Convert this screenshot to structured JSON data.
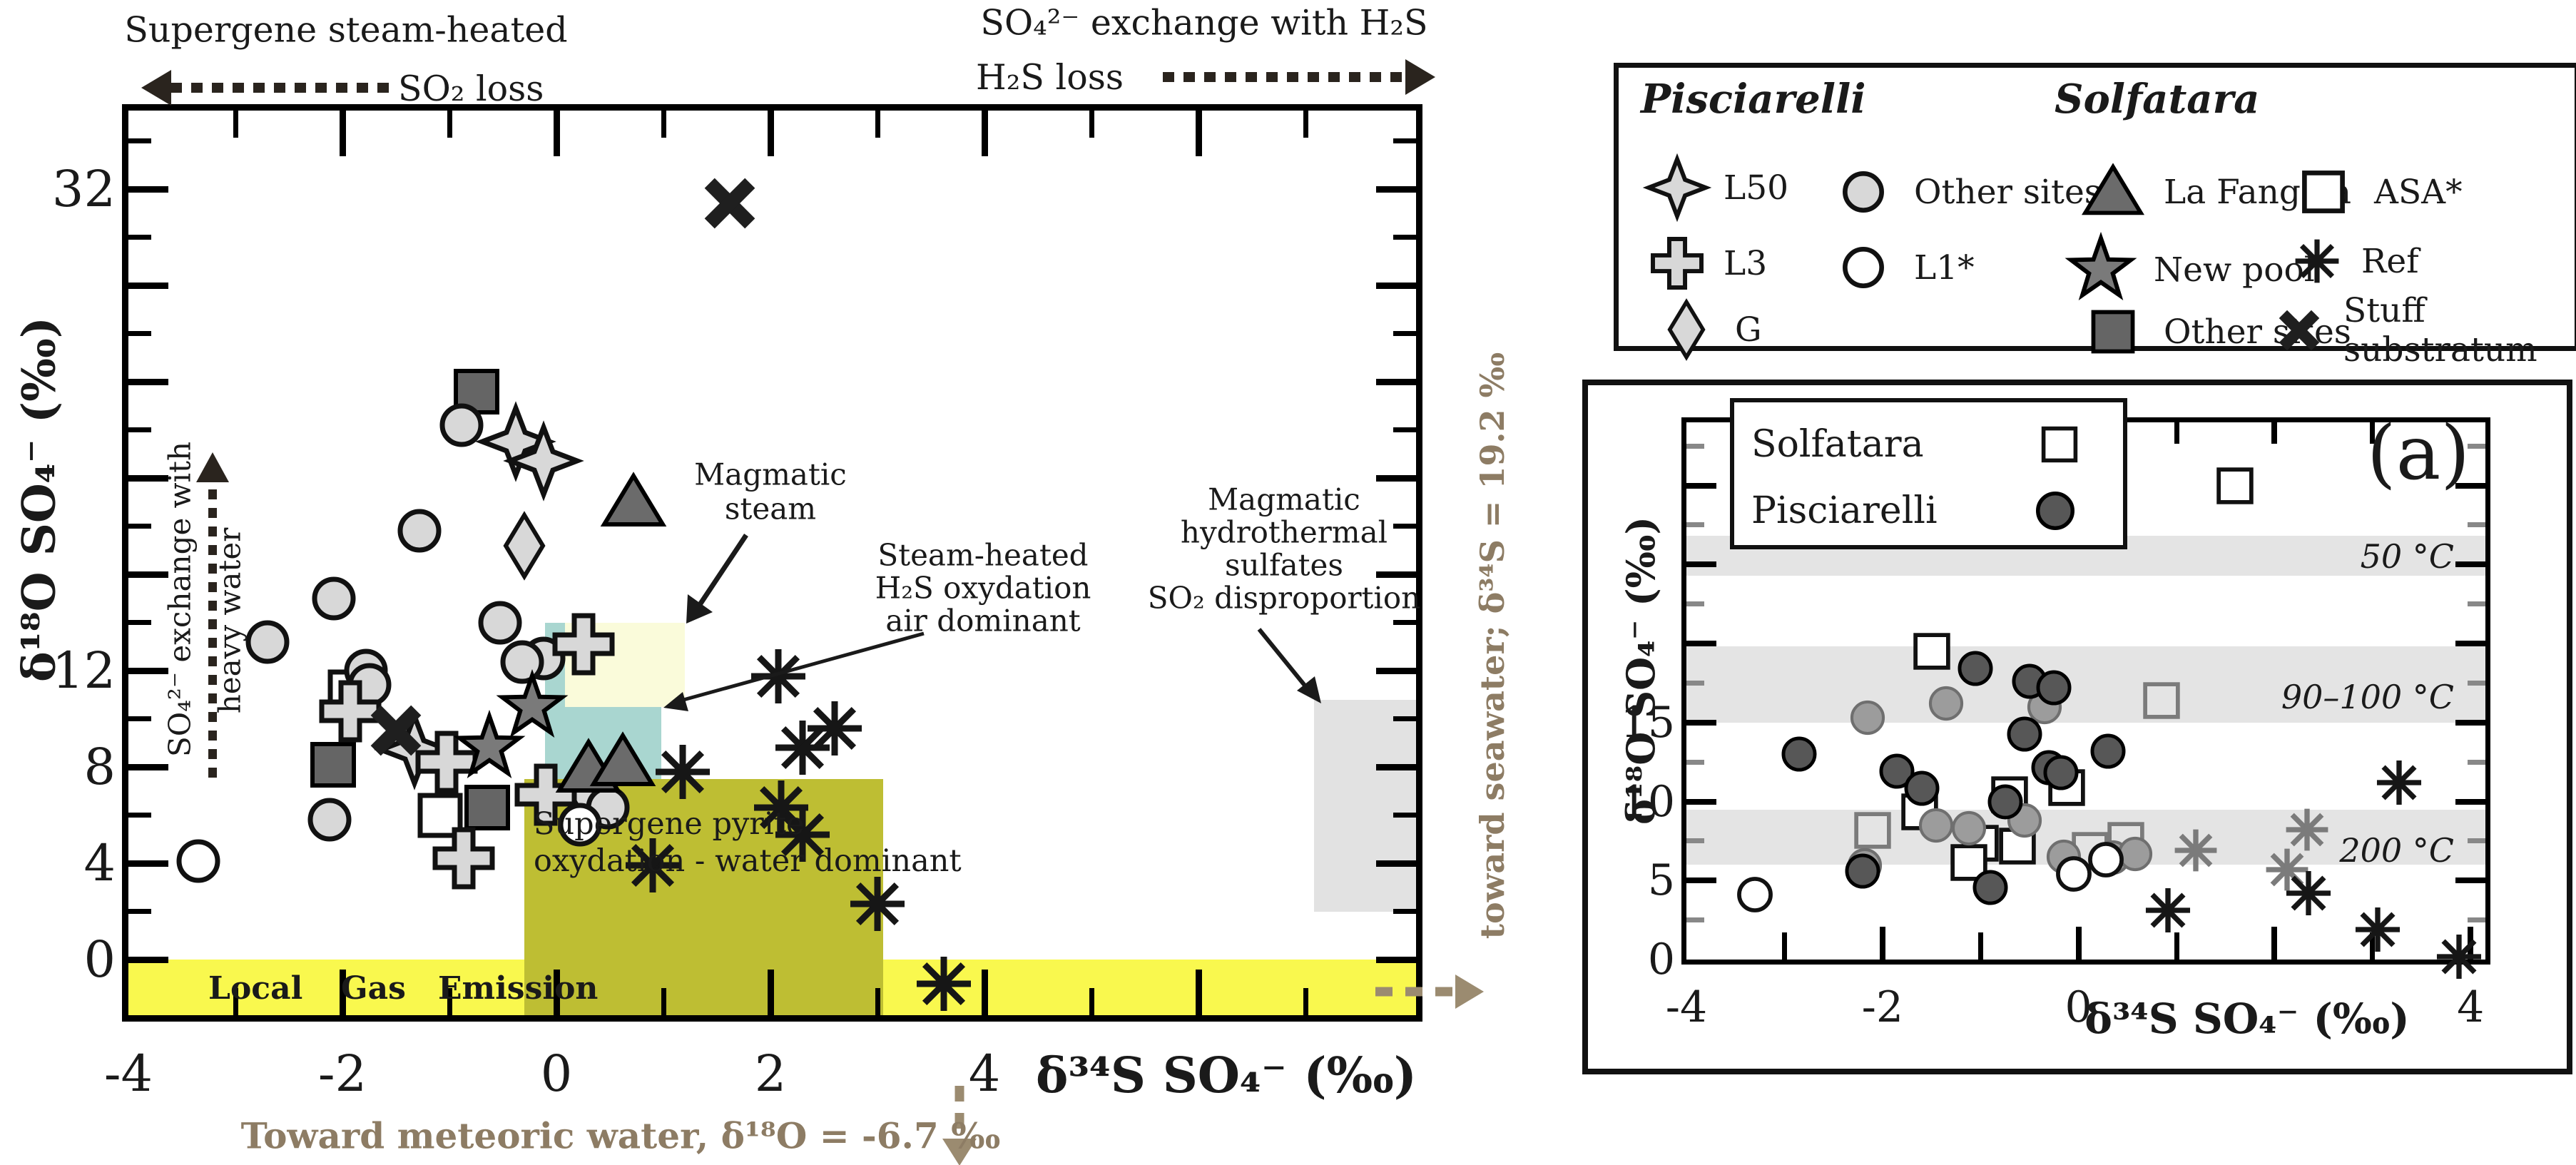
{
  "colors": {
    "light_gray": "#d8d8d8",
    "dark_gray": "#656565",
    "medium_gray": "#9c9c9c",
    "star_gray": "#7a7a7a",
    "black": "#1a1a1a",
    "yellow_band": "#f9f84e",
    "olive": "#bebe33",
    "pale_yellow": "#fafbda",
    "teal": "#a9d6d0",
    "gray_box": "#e2e2e2",
    "band_gray": "#e4e4e4",
    "annotation_brown": "#8d7c64"
  },
  "main_legend": {
    "pisciarelli_title": "Pisciarelli",
    "solfatara_title": "Solfatara",
    "l50": "L50",
    "other_sites_p": "Other sites",
    "l3": "L3",
    "l1": "L1*",
    "g": "G",
    "la_fangaia": "La Fangaia",
    "asa": "ASA*",
    "new_pool": "New pool",
    "ref": "Ref",
    "other_sites_s": "Other sites",
    "stuff_substratum": "Stuff substratum"
  },
  "chart_data": [
    {
      "type": "scatter",
      "title": "main isotope plot",
      "xlabel": "δ³⁴S SO₄⁻ (‰)",
      "ylabel": "δ¹⁸O SO₄⁻ (‰)",
      "xlim": [
        -4,
        8.03
      ],
      "ylim": [
        -2.31,
        35.26
      ],
      "x_tick_labels": [
        -4,
        -2,
        0,
        2,
        4
      ],
      "y_tick_labels": [
        0,
        4,
        8,
        12,
        32
      ],
      "annotations": {
        "top_left_1": "Supergene steam-heated",
        "top_left_2": "SO₂ loss",
        "top_right_1": "SO₄²⁻ exchange with H₂S",
        "top_right_2": "H₂S loss",
        "heavy_water": [
          "SO₄²⁻ exchange with",
          "heavy water"
        ],
        "magmatic_steam": [
          "Magmatic",
          "steam"
        ],
        "steam_heated": [
          "Steam-heated",
          "H₂S oxydation",
          "air dominant"
        ],
        "magmatic_hydrothermal": [
          "Magmatic",
          "hydrothermal",
          "sulfates",
          "SO₂ disproportion"
        ],
        "supergene_pyrite": [
          "Supergene pyrite",
          "oxydation - water dominant"
        ],
        "local_gas": [
          "Local",
          "Gas",
          "Emission"
        ],
        "toward_meteoric": "Toward meteoric water, δ¹⁸O = -6.7 ‰",
        "toward_seawater": "toward seawater; δ³⁴S = 19.2 ‰"
      },
      "regions": [
        {
          "name": "local-gas-emission-band",
          "color": "yellow_band",
          "x0": -4,
          "x1": 8.03,
          "y0": -2.31,
          "y1": 0
        },
        {
          "name": "supergene-pyrite-box",
          "color": "olive",
          "x0": -0.3,
          "x1": 3.05,
          "y0": -2.31,
          "y1": 7.5
        },
        {
          "name": "steam-heated-box",
          "color": "teal",
          "x0": -0.11,
          "x1": 0.98,
          "y0": 7.5,
          "y1": 14.0
        },
        {
          "name": "magmatic-steam-box",
          "color": "pale_yellow",
          "x0": 0.08,
          "x1": 1.2,
          "y0": 10.5,
          "y1": 14.0
        },
        {
          "name": "magmatic-hydrothermal-box",
          "color": "gray_box",
          "x0": 7.08,
          "x1": 8.03,
          "y0": 2.0,
          "y1": 10.8
        }
      ],
      "series": [
        {
          "name": "solfatara-asa",
          "marker": "square-open",
          "points": [
            [
              -1.93,
              11.1
            ],
            [
              -1.09,
              6.0
            ]
          ]
        },
        {
          "name": "solfatara-other-sites",
          "marker": "square-dark",
          "points": [
            [
              -0.75,
              23.6
            ],
            [
              -2.09,
              8.1
            ],
            [
              -0.65,
              6.3
            ]
          ]
        },
        {
          "name": "pisciarelli-other-sites",
          "marker": "circle-light",
          "points": [
            [
              -0.89,
              22.2
            ],
            [
              -1.28,
              17.8
            ],
            [
              -2.08,
              15.0
            ],
            [
              -2.7,
              13.2
            ],
            [
              -1.78,
              12.0
            ],
            [
              -1.75,
              11.4
            ],
            [
              -0.53,
              14.0
            ],
            [
              -0.12,
              12.5
            ],
            [
              -0.32,
              12.35
            ],
            [
              -2.12,
              5.8
            ],
            [
              0.33,
              6.9
            ],
            [
              0.48,
              6.3
            ]
          ]
        },
        {
          "name": "pisciarelli-l50",
          "marker": "l50-cross",
          "points": [
            [
              -0.38,
              21.5
            ],
            [
              -0.12,
              20.7
            ],
            [
              -1.33,
              8.7
            ]
          ]
        },
        {
          "name": "pisciarelli-g",
          "marker": "diamond",
          "points": [
            [
              -0.3,
              17.2
            ]
          ]
        },
        {
          "name": "pisciarelli-l3",
          "marker": "plus-cross",
          "points": [
            [
              0.25,
              13.1
            ],
            [
              -1.93,
              10.3
            ],
            [
              -1.03,
              8.2
            ],
            [
              -0.1,
              6.85
            ],
            [
              -0.87,
              4.2
            ]
          ]
        },
        {
          "name": "solfatara-new-pool",
          "marker": "star-gray",
          "points": [
            [
              -0.23,
              10.5
            ],
            [
              -0.63,
              8.8
            ]
          ]
        },
        {
          "name": "solfatara-la-fangaia",
          "marker": "triangle-dark",
          "points": [
            [
              0.72,
              19.0
            ],
            [
              0.3,
              7.95
            ],
            [
              0.62,
              8.2
            ]
          ]
        },
        {
          "name": "pisciarelli-l1",
          "marker": "circle-open",
          "points": [
            [
              -3.35,
              4.1
            ],
            [
              0.22,
              5.6
            ]
          ]
        },
        {
          "name": "stuff-substratum",
          "marker": "x-black",
          "points": [
            [
              1.62,
              31.4
            ],
            [
              -1.5,
              9.5
            ]
          ]
        },
        {
          "name": "solfatara-ref",
          "marker": "asterisk",
          "points": [
            [
              2.07,
              11.75
            ],
            [
              2.6,
              9.6
            ],
            [
              2.3,
              8.8
            ],
            [
              1.18,
              7.8
            ],
            [
              2.1,
              6.3
            ],
            [
              2.3,
              5.2
            ],
            [
              0.9,
              3.9
            ],
            [
              3.0,
              2.3
            ],
            [
              3.62,
              -1.0
            ]
          ]
        }
      ]
    },
    {
      "type": "scatter",
      "title": "inset comparison plot",
      "panel_label": "(a)",
      "xlabel": "δ³⁴S SO₄⁻ (‰)",
      "ylabel": "δ¹⁸O SO₄⁻ (‰)",
      "xlim": [
        -4,
        4.15
      ],
      "ylim": [
        0,
        34
      ],
      "x_tick_labels": [
        -4,
        -2,
        0,
        4
      ],
      "y_tick_labels": [
        0,
        5,
        10,
        15
      ],
      "legend": [
        {
          "label": "Solfatara",
          "marker": "square-open"
        },
        {
          "label": "Pisciarelli",
          "marker": "circle-dark"
        }
      ],
      "bands": [
        {
          "label": "50 °C",
          "y0": 24.3,
          "y1": 26.8,
          "label_y": 25.5
        },
        {
          "label": "90–100 °C",
          "y0": 15.0,
          "y1": 19.8,
          "label_y": 16.6
        },
        {
          "label": "200 °C",
          "y0": 6.0,
          "y1": 9.5,
          "label_y": 6.9
        }
      ],
      "series": [
        {
          "name": "solfatara-squares",
          "marker": "square-open",
          "points": [
            [
              1.6,
              30.0
            ],
            [
              -1.5,
              19.5
            ],
            [
              -0.7,
              10.45
            ],
            [
              -0.12,
              10.9
            ],
            [
              -1.62,
              9.35
            ],
            [
              -1.0,
              7.35
            ],
            [
              -0.62,
              7.2
            ],
            [
              -1.12,
              6.15
            ]
          ]
        },
        {
          "name": "solfatara-squares-gray",
          "marker": "square-open-gray",
          "points": [
            [
              0.85,
              16.4
            ],
            [
              -2.1,
              8.15
            ],
            [
              0.12,
              6.9
            ],
            [
              0.48,
              7.55
            ]
          ]
        },
        {
          "name": "pisciarelli-circles-medium",
          "marker": "circle-med",
          "points": [
            [
              -2.15,
              15.3
            ],
            [
              -1.35,
              16.2
            ],
            [
              -0.35,
              16.0
            ],
            [
              -1.45,
              8.5
            ],
            [
              -1.12,
              8.3
            ],
            [
              -0.55,
              8.8
            ],
            [
              -0.15,
              6.5
            ],
            [
              0.35,
              6.45
            ],
            [
              0.58,
              6.7
            ],
            [
              -2.18,
              5.95
            ]
          ]
        },
        {
          "name": "pisciarelli-circles-dark",
          "marker": "circle-dark",
          "points": [
            [
              -2.85,
              13.0
            ],
            [
              -1.05,
              18.4
            ],
            [
              -0.5,
              17.6
            ],
            [
              -0.25,
              17.2
            ],
            [
              -1.85,
              11.9
            ],
            [
              -1.6,
              10.85
            ],
            [
              -0.55,
              14.25
            ],
            [
              0.3,
              13.2
            ],
            [
              -0.3,
              12.15
            ],
            [
              -0.18,
              11.85
            ],
            [
              -0.75,
              10.0
            ],
            [
              -2.2,
              5.6
            ],
            [
              -0.9,
              4.55
            ]
          ]
        },
        {
          "name": "white-circles",
          "marker": "circle-open",
          "points": [
            [
              -3.3,
              4.1
            ],
            [
              -0.05,
              5.4
            ],
            [
              0.28,
              6.3
            ]
          ]
        },
        {
          "name": "ref-asterisks-gray",
          "marker": "asterisk-gray",
          "points": [
            [
              2.33,
              8.2
            ],
            [
              1.2,
              6.9
            ],
            [
              2.13,
              5.7
            ]
          ]
        },
        {
          "name": "ref-asterisks",
          "marker": "asterisk",
          "points": [
            [
              3.27,
              11.2
            ],
            [
              2.35,
              4.2
            ],
            [
              0.91,
              3.1
            ],
            [
              3.05,
              1.9
            ],
            [
              3.88,
              0.2
            ]
          ]
        }
      ]
    }
  ]
}
